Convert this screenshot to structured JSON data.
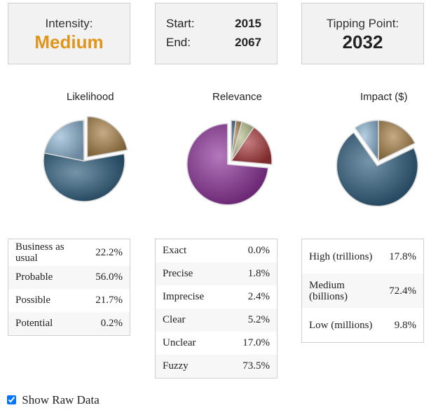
{
  "intensity": {
    "label": "Intensity:",
    "value": "Medium",
    "value_color": "#e0961a"
  },
  "range": {
    "start_label": "Start:",
    "start_value": "2015",
    "end_label": "End:",
    "end_value": "2067"
  },
  "tipping": {
    "label": "Tipping Point:",
    "value": "2032"
  },
  "charts": {
    "likelihood": {
      "title": "Likelihood",
      "rows": [
        {
          "label": "Business as usual",
          "value": "22.2%"
        },
        {
          "label": "Probable",
          "value": "56.0%"
        },
        {
          "label": "Possible",
          "value": "21.7%"
        },
        {
          "label": "Potential",
          "value": "0.2%"
        }
      ]
    },
    "relevance": {
      "title": "Relevance",
      "rows": [
        {
          "label": "Exact",
          "value": "0.0%"
        },
        {
          "label": "Precise",
          "value": "1.8%"
        },
        {
          "label": "Imprecise",
          "value": "2.4%"
        },
        {
          "label": "Clear",
          "value": "5.2%"
        },
        {
          "label": "Unclear",
          "value": "17.0%"
        },
        {
          "label": "Fuzzy",
          "value": "73.5%"
        }
      ]
    },
    "impact": {
      "title": "Impact ($)",
      "rows": [
        {
          "label": "High (trillions)",
          "value": "17.8%"
        },
        {
          "label": "Medium (billions)",
          "value": "72.4%"
        },
        {
          "label": "Low (millions)",
          "value": "9.8%"
        }
      ]
    }
  },
  "chart_data": [
    {
      "type": "pie",
      "title": "Likelihood",
      "categories": [
        "Business as usual",
        "Probable",
        "Possible",
        "Potential"
      ],
      "values": [
        22.2,
        56.0,
        21.7,
        0.2
      ],
      "colors": [
        "#a57e45",
        "#2b5a7a",
        "#8db5d3",
        "#cccccc"
      ]
    },
    {
      "type": "pie",
      "title": "Relevance",
      "categories": [
        "Exact",
        "Precise",
        "Imprecise",
        "Clear",
        "Unclear",
        "Fuzzy"
      ],
      "values": [
        0.0,
        1.8,
        2.4,
        5.2,
        17.0,
        73.5
      ],
      "colors": [
        "#cccccc",
        "#2b5a7a",
        "#a57e45",
        "#b7c08c",
        "#a8393c",
        "#8a2f97"
      ]
    },
    {
      "type": "pie",
      "title": "Impact ($)",
      "categories": [
        "High (trillions)",
        "Medium (billions)",
        "Low (millions)"
      ],
      "values": [
        17.8,
        72.4,
        9.8
      ],
      "colors": [
        "#a57e45",
        "#2b5a7a",
        "#8db5d3"
      ]
    }
  ],
  "raw_data_toggle": {
    "label": "Show Raw Data",
    "checked": true
  }
}
